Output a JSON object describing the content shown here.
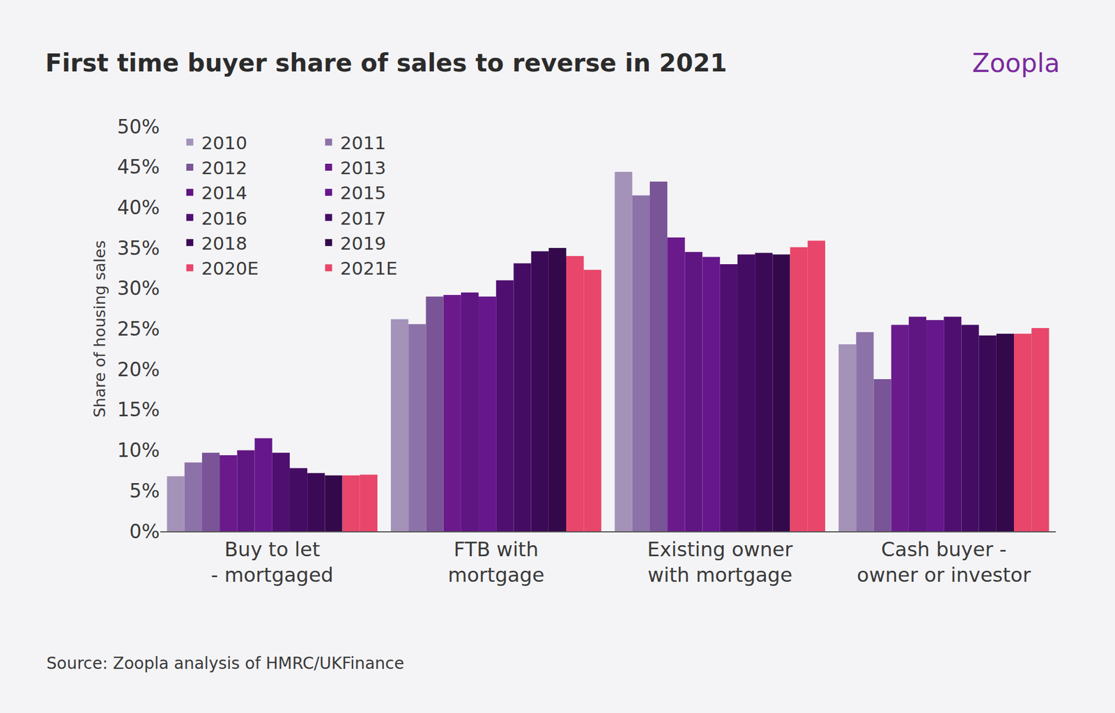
{
  "chart_data": {
    "type": "bar",
    "title": "First time buyer share of sales to reverse in 2021",
    "y_label": "Share of housing sales",
    "annotations": [
      "Zoopla",
      "Source: Zoopla analysis of HMRC/UKFinance"
    ],
    "categories": [
      "Buy to let - mortgaged",
      "FTB with mortgage",
      "Existing owner with mortgage",
      "Cash buyer - owner or investor"
    ],
    "series": [
      {
        "name": "2010",
        "color": "#a492b9",
        "values": [
          6.8,
          26.2,
          44.4,
          23.1
        ]
      },
      {
        "name": "2011",
        "color": "#8d72a9",
        "values": [
          8.5,
          25.6,
          41.5,
          24.6
        ]
      },
      {
        "name": "2012",
        "color": "#795597",
        "values": [
          9.7,
          29.0,
          43.2,
          18.8
        ]
      },
      {
        "name": "2013",
        "color": "#6b1a8c",
        "values": [
          9.4,
          29.2,
          36.3,
          25.5
        ]
      },
      {
        "name": "2014",
        "color": "#5f1582",
        "values": [
          10.0,
          29.5,
          34.5,
          26.5
        ]
      },
      {
        "name": "2015",
        "color": "#65178b",
        "values": [
          11.5,
          29.0,
          33.9,
          26.1
        ]
      },
      {
        "name": "2016",
        "color": "#4f0f70",
        "values": [
          9.7,
          31.0,
          33.0,
          26.5
        ]
      },
      {
        "name": "2017",
        "color": "#450c64",
        "values": [
          7.8,
          33.1,
          34.2,
          25.5
        ]
      },
      {
        "name": "2018",
        "color": "#3b0a56",
        "values": [
          7.2,
          34.6,
          34.4,
          24.2
        ]
      },
      {
        "name": "2019",
        "color": "#33094b",
        "values": [
          6.9,
          35.0,
          34.2,
          24.4
        ]
      },
      {
        "name": "2020E",
        "color": "#e8466a",
        "values": [
          6.9,
          34.0,
          35.1,
          24.4
        ]
      },
      {
        "name": "2021E",
        "color": "#e8466a",
        "values": [
          7.0,
          32.3,
          35.9,
          25.1
        ]
      }
    ],
    "ylim": [
      0,
      50
    ],
    "yticks": [
      {
        "value": 0,
        "label": "0%"
      },
      {
        "value": 5,
        "label": "5%"
      },
      {
        "value": 10,
        "label": "10%"
      },
      {
        "value": 15,
        "label": "15%"
      },
      {
        "value": 20,
        "label": "20%"
      },
      {
        "value": 25,
        "label": "25%"
      },
      {
        "value": 30,
        "label": "30%"
      },
      {
        "value": 35,
        "label": "35%"
      },
      {
        "value": 40,
        "label": "40%"
      },
      {
        "value": 45,
        "label": "45%"
      },
      {
        "value": 50,
        "label": "50%"
      }
    ],
    "grid": false,
    "legend": "top left"
  }
}
